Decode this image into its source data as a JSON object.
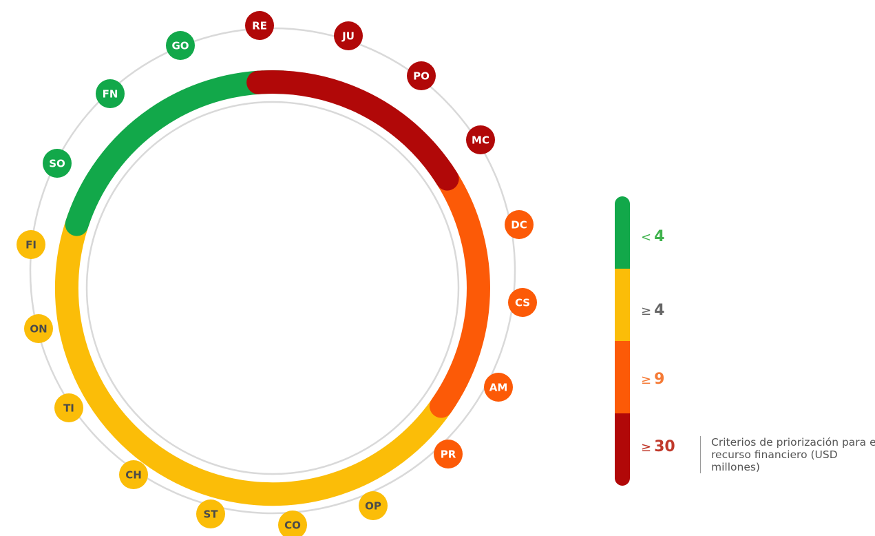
{
  "diagram": {
    "nodes": [
      {
        "code": "RE",
        "tier": "very_high"
      },
      {
        "code": "JU",
        "tier": "very_high"
      },
      {
        "code": "PO",
        "tier": "very_high"
      },
      {
        "code": "MC",
        "tier": "very_high"
      },
      {
        "code": "DC",
        "tier": "high"
      },
      {
        "code": "CS",
        "tier": "high"
      },
      {
        "code": "AM",
        "tier": "high"
      },
      {
        "code": "PR",
        "tier": "high"
      },
      {
        "code": "OP",
        "tier": "medium"
      },
      {
        "code": "CO",
        "tier": "medium"
      },
      {
        "code": "ST",
        "tier": "medium"
      },
      {
        "code": "CH",
        "tier": "medium"
      },
      {
        "code": "TI",
        "tier": "medium"
      },
      {
        "code": "ON",
        "tier": "medium"
      },
      {
        "code": "FI",
        "tier": "medium"
      },
      {
        "code": "SO",
        "tier": "low"
      },
      {
        "code": "FN",
        "tier": "low"
      },
      {
        "code": "GO",
        "tier": "low"
      }
    ]
  },
  "colors": {
    "low": "#12a84a",
    "medium": "#fbbd08",
    "high": "#fc5a07",
    "very_high": "#b10808",
    "guide_ring": "#d9d9d9",
    "node_label_dark": "#4a4a4a"
  },
  "legend": {
    "items": [
      {
        "symbol": "<",
        "value": "4",
        "tier": "low",
        "color": "#3fb24d"
      },
      {
        "symbol": "≥",
        "value": "4",
        "tier": "medium",
        "color": "#666666"
      },
      {
        "symbol": "≥",
        "value": "9",
        "tier": "high",
        "color": "#f57a35"
      },
      {
        "symbol": "≥",
        "value": "30",
        "tier": "very_high",
        "color": "#c0392b"
      }
    ],
    "note": "Criterios de priorización para el recurso financiero (USD millones)"
  }
}
